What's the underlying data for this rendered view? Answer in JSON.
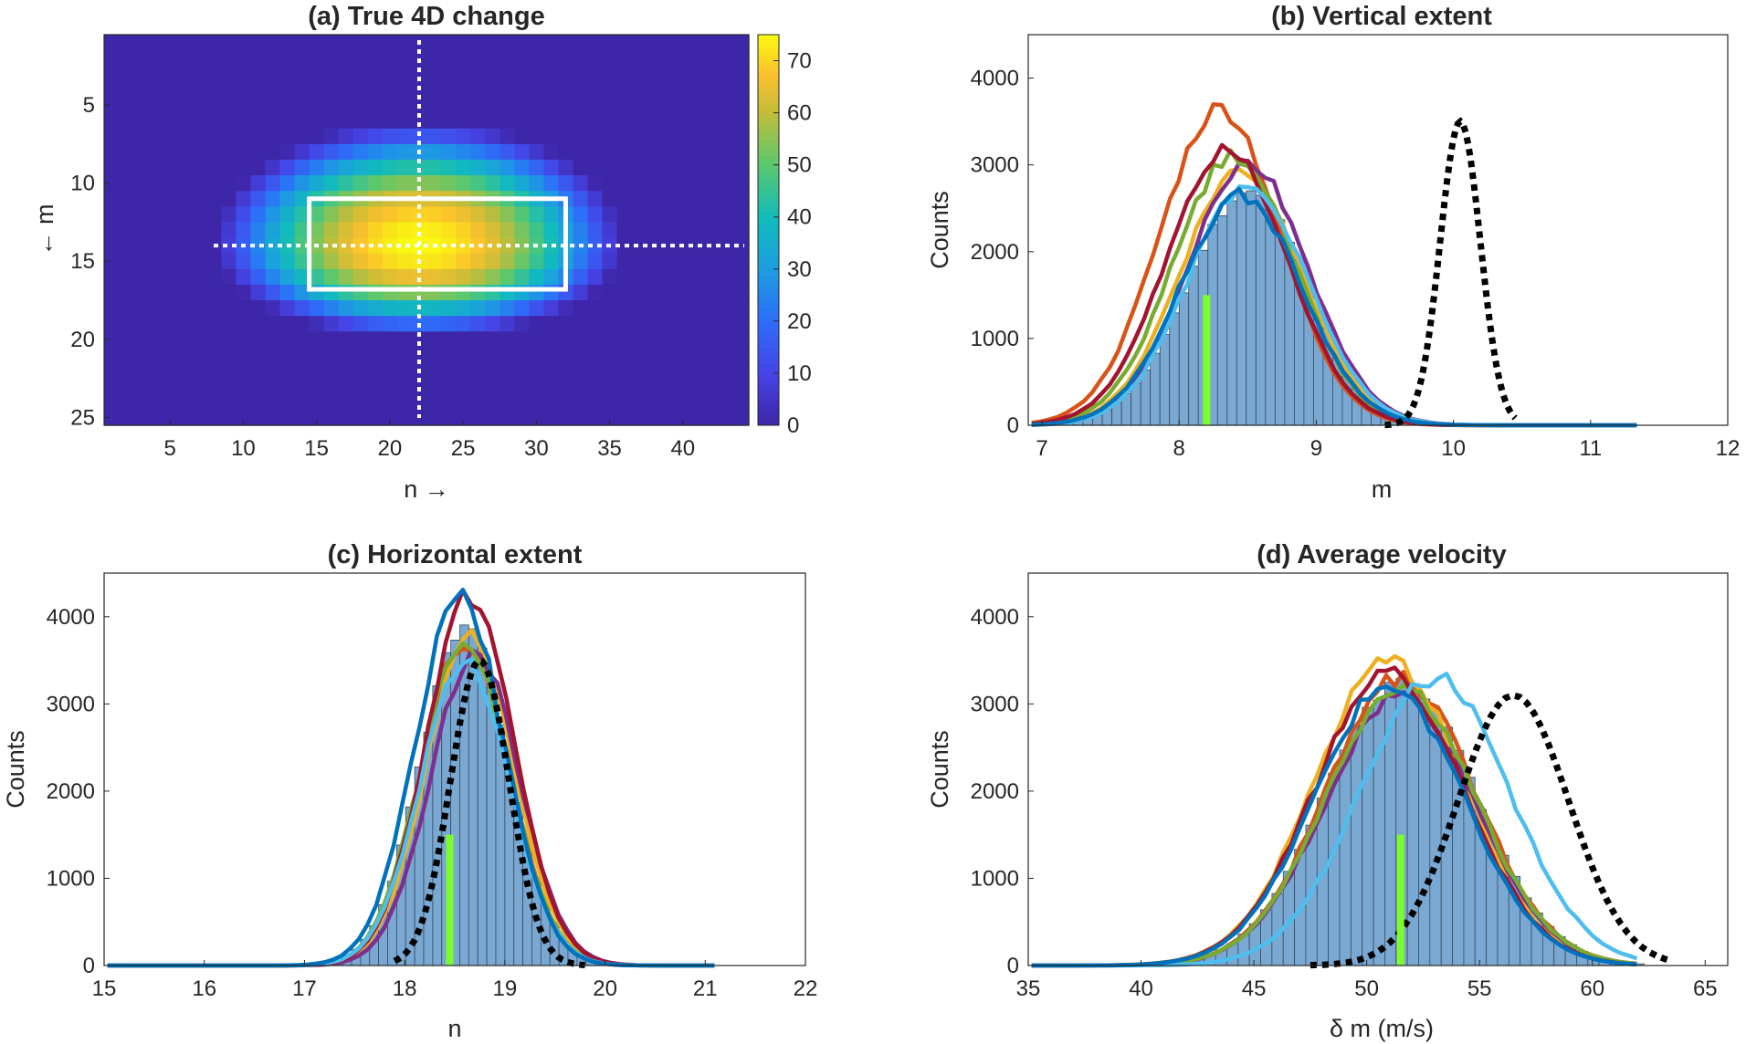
{
  "chart_data": [
    {
      "panel": "a",
      "type": "heatmap",
      "title": "(a) True 4D change",
      "xlabel": "n →",
      "ylabel": "← m",
      "xlim": [
        0.5,
        44.5
      ],
      "ylim": [
        0.5,
        25.5
      ],
      "xticks": [
        5,
        10,
        15,
        20,
        25,
        30,
        35,
        40
      ],
      "yticks": [
        5,
        10,
        15,
        20,
        25
      ],
      "field": {
        "center_n": 22,
        "center_m": 14,
        "max": 75,
        "half_width_n": 14,
        "half_height_up": 8,
        "half_height_down": 6
      },
      "colorbar": {
        "min": 0,
        "max": 75,
        "ticks": [
          0,
          10,
          20,
          30,
          40,
          50,
          60,
          70
        ]
      },
      "box": {
        "n": [
          14.5,
          32
        ],
        "m": [
          11,
          16.8
        ]
      },
      "crosshair": {
        "n": 22,
        "m": 14
      }
    },
    {
      "panel": "b",
      "type": "bar",
      "title": "(b) Vertical extent",
      "xlabel": "m",
      "ylabel": "Counts",
      "xlim": [
        6.9,
        12
      ],
      "ylim": [
        0,
        4500
      ],
      "xticks": [
        7,
        8,
        9,
        10,
        11,
        12
      ],
      "yticks": [
        0,
        1000,
        2000,
        3000,
        4000
      ],
      "hist": {
        "mean": 8.5,
        "sd": 0.44,
        "peak": 2700,
        "width": 0.07
      },
      "lines": [
        {
          "color": "#D95319",
          "peak_x": 8.3,
          "peak": 3650
        },
        {
          "color": "#EDB120",
          "peak_x": 8.45,
          "peak": 2950
        },
        {
          "color": "#7E2F8E",
          "peak_x": 8.5,
          "peak": 3000
        },
        {
          "color": "#77AC30",
          "peak_x": 8.4,
          "peak": 3100
        },
        {
          "color": "#A2142F",
          "peak_x": 8.35,
          "peak": 3150
        },
        {
          "color": "#4DBEEE",
          "peak_x": 8.5,
          "peak": 2750
        },
        {
          "color": "#0072BD",
          "peak_x": 8.45,
          "peak": 2650
        }
      ],
      "dotted": {
        "peak_x": 10.05,
        "peak": 3500,
        "from": 9.5,
        "to": 10.45
      },
      "truth": {
        "x": 8.2,
        "height": 1500
      }
    },
    {
      "panel": "c",
      "type": "bar",
      "title": "(c) Horizontal extent",
      "xlabel": "n",
      "ylabel": "Counts",
      "xlim": [
        15,
        22
      ],
      "ylim": [
        0,
        4500
      ],
      "xticks": [
        15,
        16,
        17,
        18,
        19,
        20,
        21,
        22
      ],
      "yticks": [
        0,
        1000,
        2000,
        3000,
        4000
      ],
      "hist": {
        "mean": 18.6,
        "sd": 0.44,
        "peak": 3850,
        "width": 0.09
      },
      "lines": [
        {
          "color": "#D95319",
          "peak_x": 18.6,
          "peak": 3700
        },
        {
          "color": "#EDB120",
          "peak_x": 18.65,
          "peak": 3750
        },
        {
          "color": "#7E2F8E",
          "peak_x": 18.7,
          "peak": 3600
        },
        {
          "color": "#77AC30",
          "peak_x": 18.6,
          "peak": 3700
        },
        {
          "color": "#A2142F",
          "peak_x": 18.65,
          "peak": 4250
        },
        {
          "color": "#4DBEEE",
          "peak_x": 18.6,
          "peak": 3500
        },
        {
          "color": "#0072BD",
          "peak_x": 18.55,
          "peak": 4250
        }
      ],
      "dotted": {
        "peak_x": 18.75,
        "peak": 3500,
        "from": 17.9,
        "to": 19.8
      },
      "truth": {
        "x": 18.45,
        "height": 1500
      }
    },
    {
      "panel": "d",
      "type": "bar",
      "title": "(d) Average velocity",
      "xlabel": "δ m (m/s)",
      "ylabel": "Counts",
      "xlim": [
        35,
        66
      ],
      "ylim": [
        0,
        4500
      ],
      "xticks": [
        35,
        40,
        45,
        50,
        55,
        60,
        65
      ],
      "yticks": [
        0,
        1000,
        2000,
        3000,
        4000
      ],
      "hist": {
        "mean": 51.5,
        "sd": 3.3,
        "peak": 3250,
        "width": 0.5
      },
      "lines": [
        {
          "color": "#D95319",
          "peak_x": 51.5,
          "peak": 3300
        },
        {
          "color": "#EDB120",
          "peak_x": 51,
          "peak": 3500
        },
        {
          "color": "#7E2F8E",
          "peak_x": 51.5,
          "peak": 3100
        },
        {
          "color": "#77AC30",
          "peak_x": 51.5,
          "peak": 3200
        },
        {
          "color": "#A2142F",
          "peak_x": 51,
          "peak": 3350
        },
        {
          "color": "#4DBEEE",
          "peak_x": 53,
          "peak": 3300
        },
        {
          "color": "#0072BD",
          "peak_x": 51,
          "peak": 3200
        }
      ],
      "dotted": {
        "peak_x": 56.5,
        "peak": 3100,
        "from": 47.5,
        "to": 63.5
      },
      "truth": {
        "x": 51.5,
        "height": 1500
      }
    }
  ]
}
